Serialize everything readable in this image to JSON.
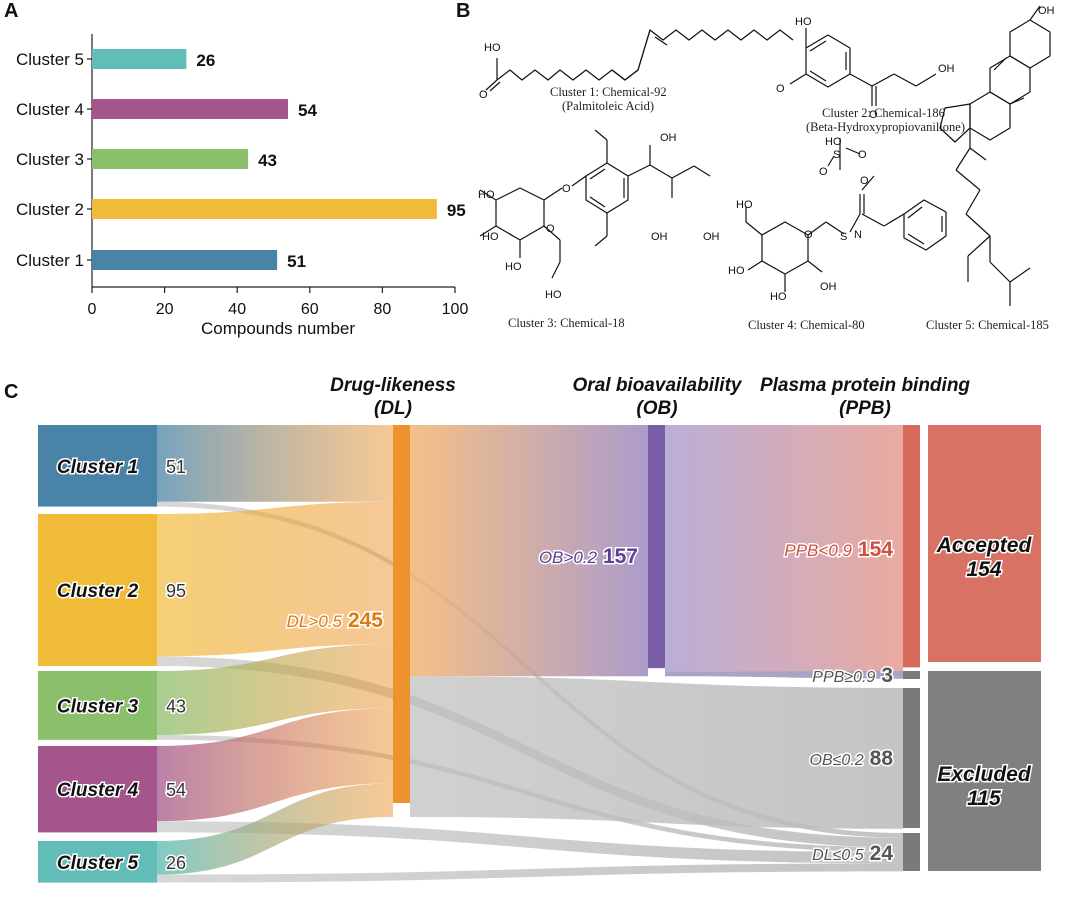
{
  "panels": {
    "a": "A",
    "b": "B",
    "c": "C"
  },
  "colors": {
    "cluster_1": "#4a83a8",
    "cluster_2": "#f1bb3a",
    "cluster_3": "#8abf6b",
    "cluster_4": "#a4568c",
    "cluster_5": "#62bdb8",
    "dl": "#ec922f",
    "ob": "#7a5ea8",
    "ppb": "#d86b5c",
    "accepted": "#d77264",
    "excluded": "#808080",
    "reject": "#bdbdbd"
  },
  "chart_data": [
    {
      "type": "bar",
      "orientation": "horizontal",
      "categories": [
        "Cluster 1",
        "Cluster 2",
        "Cluster 3",
        "Cluster 4",
        "Cluster 5"
      ],
      "values": [
        51,
        95,
        43,
        54,
        26
      ],
      "xlabel": "Compounds number",
      "xlim": [
        0,
        100
      ],
      "xticks": [
        "0",
        "20",
        "40",
        "60",
        "80",
        "100"
      ],
      "grid": false
    },
    {
      "type": "sankey",
      "headers": [
        {
          "line1": "Drug-likeness",
          "line2": "(DL)"
        },
        {
          "line1": "Oral bioavailability",
          "line2": "(OB)"
        },
        {
          "line1": "Plasma protein binding",
          "line2": "(PPB)"
        }
      ],
      "sources": [
        {
          "name": "Cluster 1",
          "value": 51,
          "pass": 48,
          "fail": 3
        },
        {
          "name": "Cluster 2",
          "value": 95,
          "pass": 89,
          "fail": 6
        },
        {
          "name": "Cluster 3",
          "value": 43,
          "pass": 40,
          "fail": 3
        },
        {
          "name": "Cluster 4",
          "value": 54,
          "pass": 47,
          "fail": 7
        },
        {
          "name": "Cluster 5",
          "value": 26,
          "pass": 21,
          "fail": 5
        }
      ],
      "stages": [
        {
          "label": "DL>0.5",
          "value": "245"
        },
        {
          "label": "OB>0.2",
          "value": "157"
        },
        {
          "label": "PPB<0.9",
          "value": "154"
        }
      ],
      "rejects": [
        {
          "label": "PPB≥0.9",
          "value": "3"
        },
        {
          "label": "OB≤0.2",
          "value": "88"
        },
        {
          "label": "DL≤0.5",
          "value": "24"
        }
      ],
      "outcomes": [
        {
          "label": "Accepted",
          "value": "154"
        },
        {
          "label": "Excluded",
          "value": "115"
        }
      ]
    }
  ],
  "structures": [
    {
      "caption": [
        "Cluster 1: Chemical-92",
        "(Palmitoleic Acid)"
      ]
    },
    {
      "caption": [
        "Cluster 2: Chemical-186",
        "(Beta-Hydroxypropiovanillone)"
      ]
    },
    {
      "caption": [
        "Cluster 3: Chemical-18"
      ]
    },
    {
      "caption": [
        "Cluster 4: Chemical-80"
      ]
    },
    {
      "caption": [
        "Cluster 5: Chemical-185"
      ]
    }
  ]
}
